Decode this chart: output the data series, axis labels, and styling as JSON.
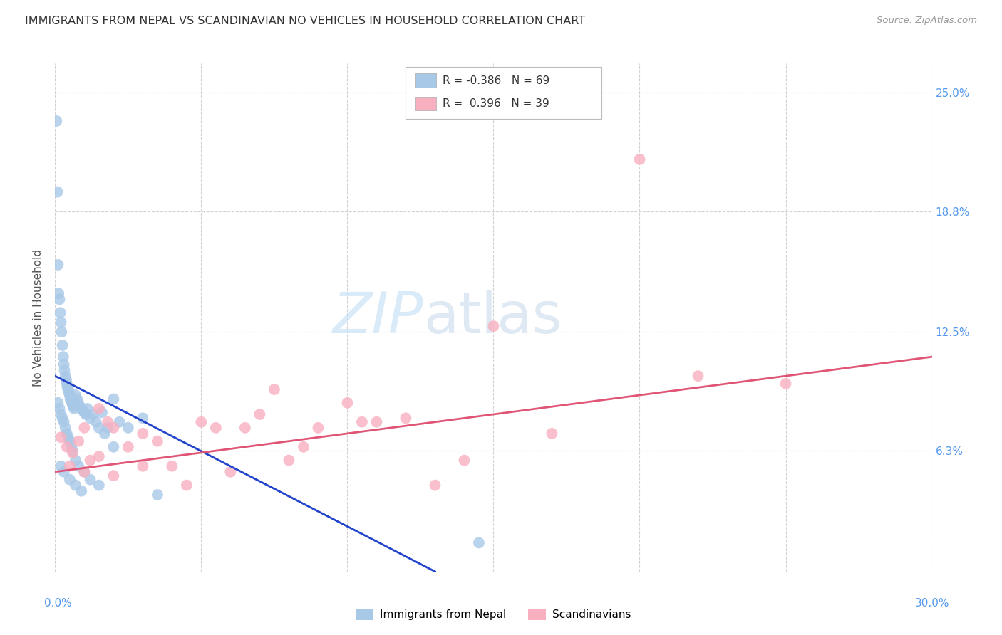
{
  "title": "IMMIGRANTS FROM NEPAL VS SCANDINAVIAN NO VEHICLES IN HOUSEHOLD CORRELATION CHART",
  "source": "Source: ZipAtlas.com",
  "ylabel": "No Vehicles in Household",
  "xlim": [
    0.0,
    30.0
  ],
  "ylim": [
    0.0,
    26.5
  ],
  "yticks": [
    6.3,
    12.5,
    18.8,
    25.0
  ],
  "ytick_labels": [
    "6.3%",
    "12.5%",
    "18.8%",
    "25.0%"
  ],
  "color_blue": "#a8c8e8",
  "color_pink": "#f8b0c0",
  "line_blue": "#2244cc",
  "line_pink": "#e05575",
  "r_nepal": "-0.386",
  "n_nepal": "69",
  "r_scand": "0.396",
  "n_scand": "39",
  "label_nepal": "Immigrants from Nepal",
  "label_scand": "Scandinavians",
  "watermark_zip": "ZIP",
  "watermark_atlas": "atlas",
  "nepal_x": [
    0.05,
    0.08,
    0.1,
    0.12,
    0.15,
    0.18,
    0.2,
    0.22,
    0.25,
    0.28,
    0.3,
    0.32,
    0.35,
    0.38,
    0.4,
    0.42,
    0.45,
    0.48,
    0.5,
    0.52,
    0.55,
    0.58,
    0.6,
    0.62,
    0.65,
    0.7,
    0.75,
    0.8,
    0.85,
    0.9,
    0.95,
    1.0,
    1.05,
    1.1,
    1.2,
    1.3,
    1.4,
    1.5,
    1.6,
    1.7,
    1.8,
    2.0,
    2.2,
    2.5,
    3.0,
    0.1,
    0.15,
    0.2,
    0.25,
    0.3,
    0.35,
    0.4,
    0.45,
    0.5,
    0.55,
    0.6,
    0.7,
    0.8,
    1.0,
    1.2,
    1.5,
    2.0,
    3.5,
    14.5,
    0.2,
    0.3,
    0.5,
    0.7,
    0.9
  ],
  "nepal_y": [
    23.5,
    19.8,
    16.0,
    14.5,
    14.2,
    13.5,
    13.0,
    12.5,
    11.8,
    11.2,
    10.8,
    10.5,
    10.2,
    10.0,
    9.8,
    9.6,
    9.5,
    9.3,
    9.2,
    9.0,
    8.9,
    8.8,
    8.7,
    8.6,
    8.5,
    9.2,
    9.0,
    8.8,
    8.6,
    8.5,
    8.4,
    8.3,
    8.2,
    8.5,
    8.0,
    8.2,
    7.8,
    7.5,
    8.3,
    7.2,
    7.5,
    9.0,
    7.8,
    7.5,
    8.0,
    8.8,
    8.5,
    8.2,
    8.0,
    7.8,
    7.5,
    7.2,
    7.0,
    6.8,
    6.5,
    6.3,
    5.8,
    5.5,
    5.2,
    4.8,
    4.5,
    6.5,
    4.0,
    1.5,
    5.5,
    5.2,
    4.8,
    4.5,
    4.2
  ],
  "scand_x": [
    0.2,
    0.4,
    0.6,
    0.8,
    1.0,
    1.2,
    1.5,
    1.8,
    2.0,
    2.5,
    3.0,
    3.5,
    4.0,
    5.0,
    5.5,
    6.0,
    7.0,
    7.5,
    8.0,
    9.0,
    10.0,
    11.0,
    12.0,
    14.0,
    15.0,
    17.0,
    20.0,
    22.0,
    25.0,
    0.5,
    1.0,
    1.5,
    2.0,
    3.0,
    4.5,
    6.5,
    8.5,
    10.5,
    13.0
  ],
  "scand_y": [
    7.0,
    6.5,
    6.2,
    6.8,
    7.5,
    5.8,
    8.5,
    7.8,
    7.5,
    6.5,
    7.2,
    6.8,
    5.5,
    7.8,
    7.5,
    5.2,
    8.2,
    9.5,
    5.8,
    7.5,
    8.8,
    7.8,
    8.0,
    5.8,
    12.8,
    7.2,
    21.5,
    10.2,
    9.8,
    5.5,
    5.2,
    6.0,
    5.0,
    5.5,
    4.5,
    7.5,
    6.5,
    7.8,
    4.5
  ],
  "nepal_line_x": [
    0.0,
    13.0
  ],
  "nepal_line_y": [
    10.2,
    0.0
  ],
  "scand_line_x": [
    0.0,
    30.0
  ],
  "scand_line_y": [
    5.2,
    11.2
  ]
}
